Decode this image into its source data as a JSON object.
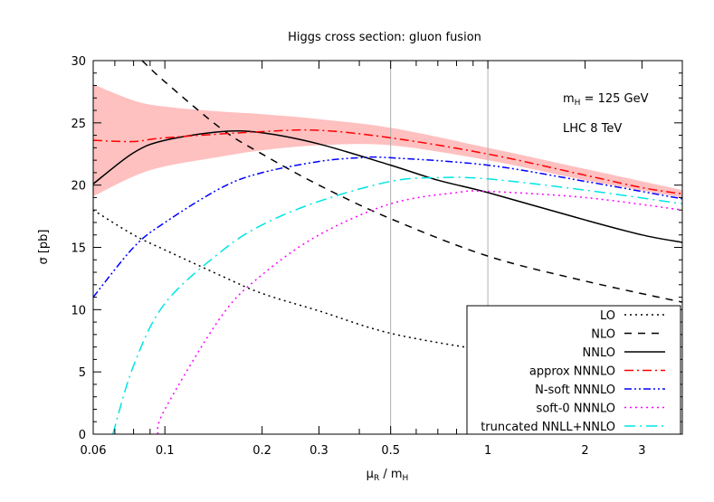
{
  "chart_data": {
    "type": "line",
    "title": "Higgs cross section: gluon fusion",
    "xlabel": "μ_R / m_H",
    "xlabel_main": "μ",
    "xlabel_sub1": "R",
    "xlabel_mid": " / m",
    "xlabel_sub2": "H",
    "ylabel": "σ [pb]",
    "xscale": "log",
    "xlim": [
      0.06,
      4
    ],
    "ylim": [
      0,
      30
    ],
    "xticks": [
      0.06,
      0.1,
      0.2,
      0.3,
      0.5,
      1,
      2,
      3
    ],
    "xtick_labels": [
      "0.06",
      "0.1",
      "0.2",
      "0.3",
      "0.5",
      "1",
      "2",
      "3"
    ],
    "yticks": [
      0,
      5,
      10,
      15,
      20,
      25,
      30
    ],
    "ytick_labels": [
      "0",
      "5",
      "10",
      "15",
      "20",
      "25",
      "30"
    ],
    "vertical_lines": [
      0.5,
      1
    ],
    "vertical_line_color": "#b0b0b0",
    "grid": false,
    "legend_position": "bottom-right",
    "annotations": {
      "mass_main": "m",
      "mass_sub": "H",
      "mass_rest": " = 125 GeV",
      "collider": "LHC 8 TeV"
    },
    "band": {
      "color": "#ffc0c0",
      "x": [
        0.06,
        0.08,
        0.1,
        0.15,
        0.2,
        0.3,
        0.5,
        1,
        2,
        4
      ],
      "upper": [
        28.1,
        26.8,
        26.3,
        25.9,
        25.7,
        25.3,
        24.6,
        23.0,
        21.3,
        19.6
      ],
      "lower": [
        19.1,
        20.7,
        21.5,
        22.3,
        22.8,
        23.2,
        23.2,
        22.0,
        20.4,
        19.0
      ]
    },
    "series": [
      {
        "name": "LO",
        "color": "#000000",
        "dash": "dotted",
        "x": [
          0.06,
          0.08,
          0.1,
          0.15,
          0.2,
          0.3,
          0.5,
          1,
          2,
          4
        ],
        "y": [
          18.0,
          16.0,
          14.8,
          12.7,
          11.3,
          9.9,
          8.1,
          6.7,
          5.6,
          4.7
        ]
      },
      {
        "name": "NLO",
        "color": "#000000",
        "dash": "dashed",
        "x": [
          0.085,
          0.1,
          0.15,
          0.2,
          0.3,
          0.5,
          1,
          2,
          4
        ],
        "y": [
          30.0,
          28.3,
          24.5,
          22.5,
          20.0,
          17.3,
          14.3,
          12.3,
          10.6
        ]
      },
      {
        "name": "NNLO",
        "color": "#000000",
        "dash": "solid",
        "x": [
          0.06,
          0.08,
          0.1,
          0.15,
          0.2,
          0.3,
          0.5,
          0.7,
          1,
          2,
          3,
          4
        ],
        "y": [
          20.1,
          22.6,
          23.6,
          24.3,
          24.2,
          23.3,
          21.6,
          20.4,
          19.4,
          17.2,
          16.0,
          15.4
        ]
      },
      {
        "name": "approx NNNLO",
        "color": "#ff0000",
        "dash": "dashdot",
        "x": [
          0.06,
          0.08,
          0.1,
          0.2,
          0.3,
          0.5,
          1,
          2,
          3,
          4
        ],
        "y": [
          23.6,
          23.5,
          23.8,
          24.3,
          24.4,
          23.8,
          22.5,
          20.8,
          19.8,
          19.3
        ]
      },
      {
        "name": "N-soft NNNLO",
        "color": "#0000ff",
        "dash": "dashdotdot",
        "x": [
          0.06,
          0.08,
          0.1,
          0.15,
          0.2,
          0.3,
          0.4,
          0.5,
          1,
          2,
          4
        ],
        "y": [
          11.0,
          15.0,
          17.0,
          19.8,
          21.0,
          21.9,
          22.2,
          22.2,
          21.6,
          20.3,
          18.9
        ]
      },
      {
        "name": "soft-0 NNNLO",
        "color": "#ff00ff",
        "dash": "dotted",
        "x": [
          0.095,
          0.1,
          0.15,
          0.2,
          0.3,
          0.5,
          0.8,
          1,
          2,
          4
        ],
        "y": [
          0,
          2.0,
          9.5,
          12.8,
          16.0,
          18.5,
          19.4,
          19.5,
          19.0,
          18.0
        ]
      },
      {
        "name": "truncated NNLL+NNLO",
        "color": "#00e5e5",
        "dash": "longdashdot",
        "x": [
          0.069,
          0.08,
          0.1,
          0.15,
          0.2,
          0.3,
          0.5,
          0.7,
          1,
          2,
          4
        ],
        "y": [
          0,
          5.5,
          10.5,
          14.7,
          16.8,
          18.7,
          20.3,
          20.6,
          20.5,
          19.6,
          18.5
        ]
      }
    ]
  }
}
